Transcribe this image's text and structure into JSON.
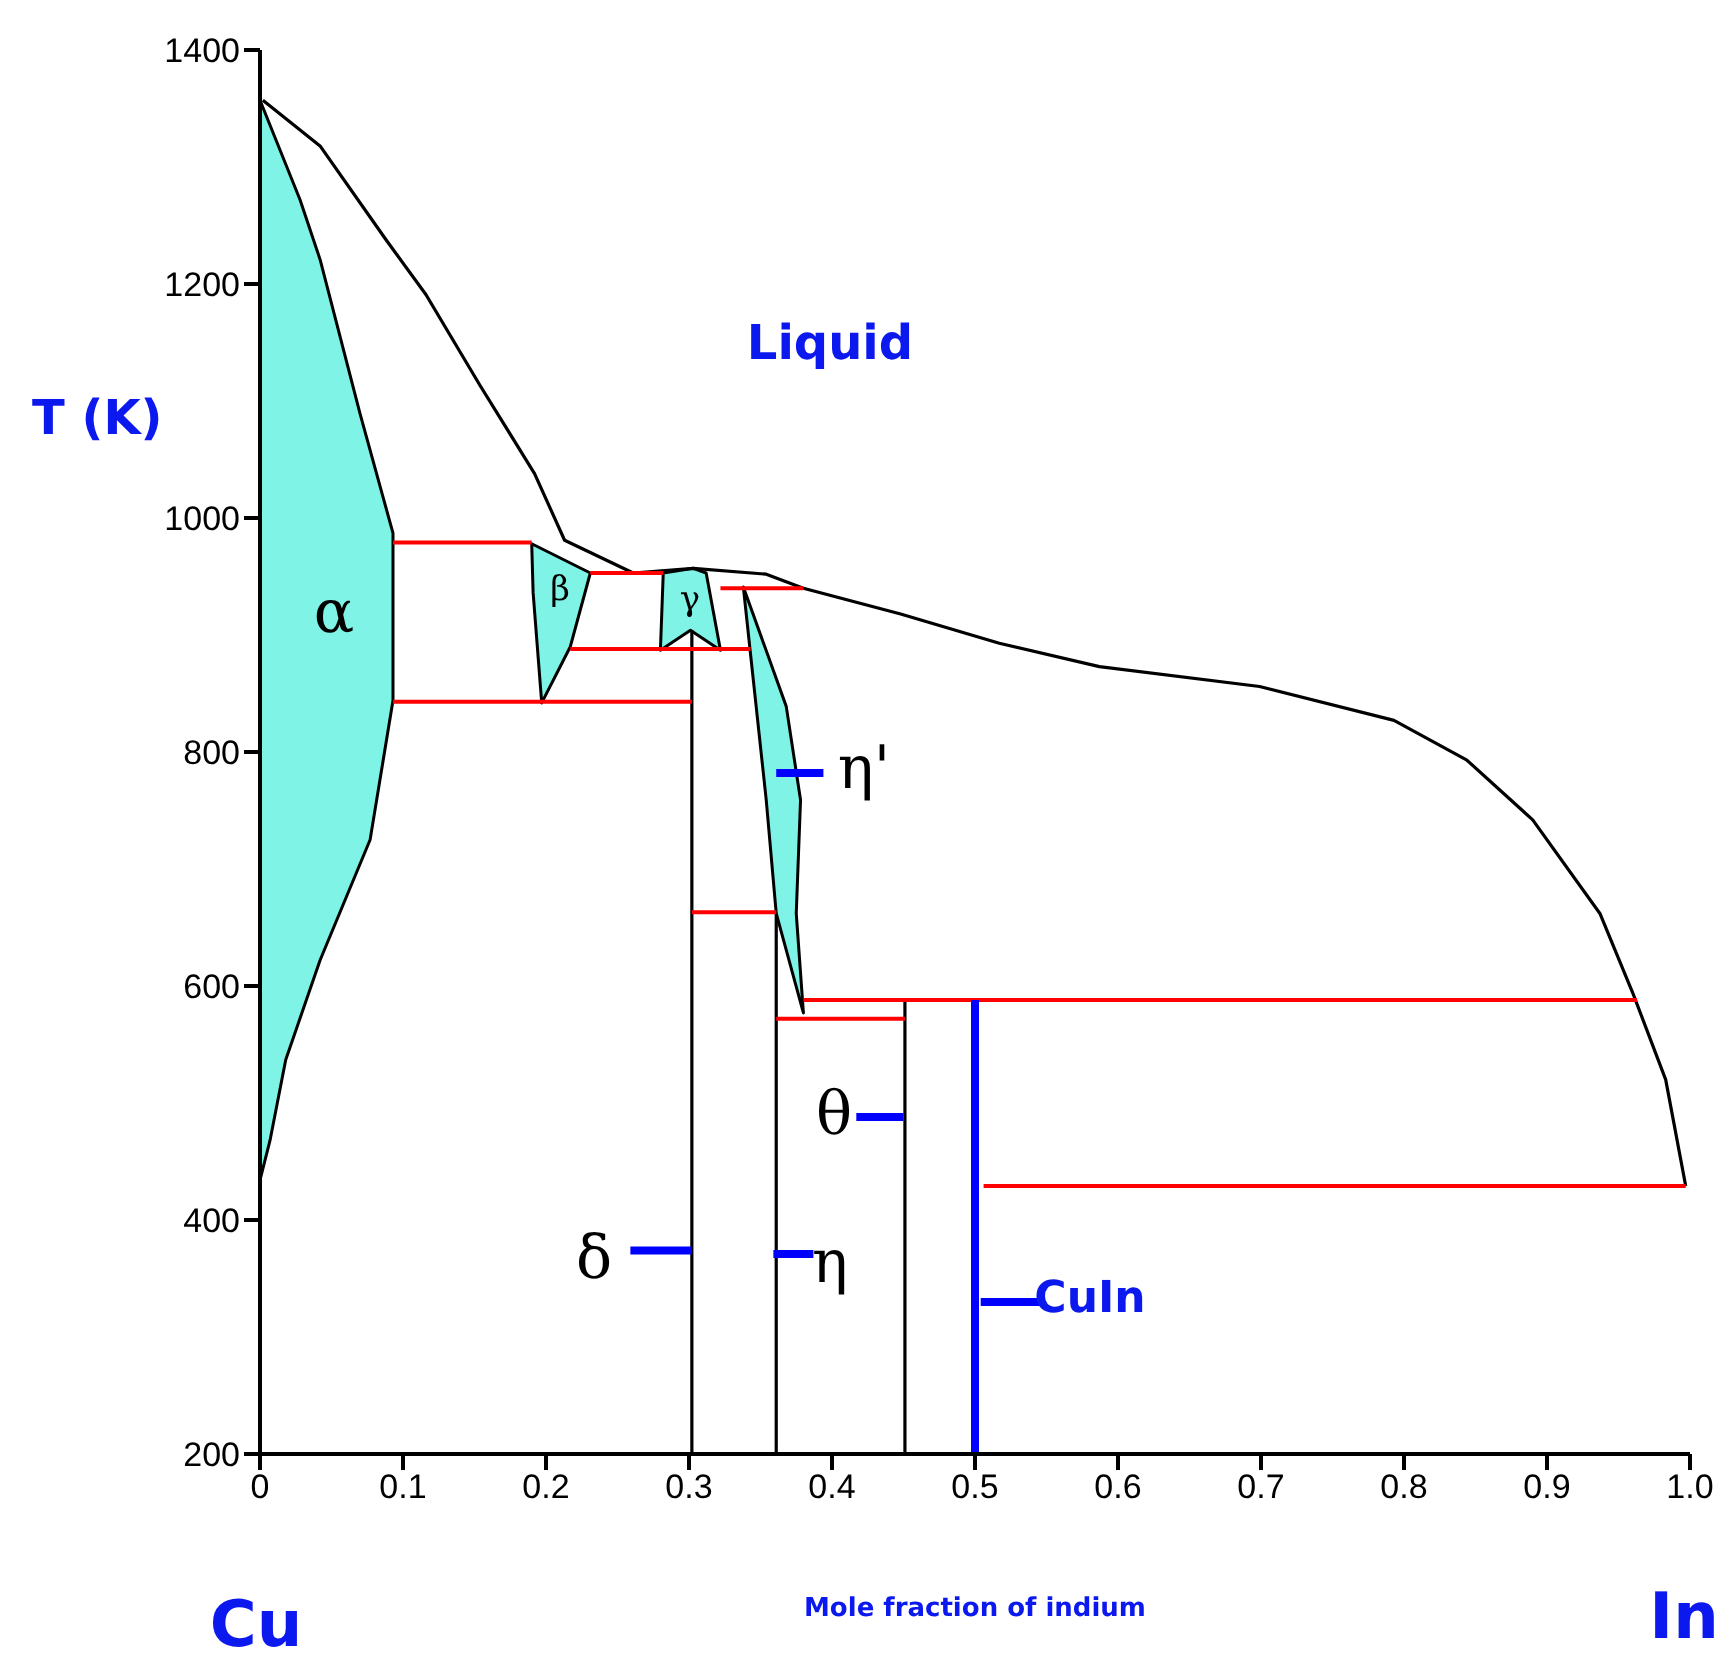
{
  "chart_data": {
    "type": "line",
    "xlabel": "Mole fraction of indium",
    "ylabel": "T (K)",
    "xlim": [
      0,
      1
    ],
    "ylim": [
      200,
      1400
    ],
    "xticks": [
      0,
      0.1,
      0.2,
      0.3,
      0.4,
      0.5,
      0.6,
      0.7,
      0.8,
      0.9,
      {
        "value": 1,
        "label": "1.0"
      }
    ],
    "yticks": [
      200,
      400,
      600,
      800,
      1000,
      1200,
      1400
    ],
    "marker": "none",
    "line_style": "solid",
    "series": [
      {
        "type": "area",
        "color": "#7ff3e6",
        "x": [
          0,
          0.028,
          0.042,
          0.07,
          0.093,
          0.093,
          0.077,
          0.042,
          0.018,
          0.007,
          0
        ],
        "values": [
          1357,
          1272,
          1221,
          1089,
          987,
          844,
          725,
          622,
          537,
          468,
          434
        ]
      },
      {
        "type": "area",
        "color": "#7ff3e6",
        "x": [
          0.19,
          0.231,
          0.217,
          0.197,
          0.191
        ],
        "values": [
          978,
          953,
          890,
          842,
          936
        ]
      },
      {
        "type": "area",
        "color": "#7ff3e6",
        "x": [
          0.282,
          0.303,
          0.312,
          0.322,
          0.301,
          0.28
        ],
        "values": [
          953,
          957,
          953,
          887,
          904,
          887
        ]
      },
      {
        "type": "area",
        "color": "#7ff3e6",
        "x": [
          0.338,
          0.368,
          0.378,
          0.375,
          0.38,
          0.361,
          0.354,
          0.343
        ],
        "values": [
          941,
          839,
          759,
          662,
          577,
          662,
          759,
          884
        ]
      },
      {
        "type": "line",
        "color": "#000000",
        "x": [
          0.002,
          0.042,
          0.088,
          0.116,
          0.154,
          0.192,
          0.213,
          0.261,
          0.303,
          0.354,
          0.38,
          0.448,
          0.517,
          0.587,
          0.699,
          0.793,
          0.844,
          0.89,
          0.937,
          0.96,
          0.983,
          0.997
        ],
        "values": [
          1357,
          1318,
          1238,
          1191,
          1113,
          1038,
          981,
          953,
          957,
          952,
          940,
          918,
          893,
          873,
          856,
          827,
          793,
          742,
          662,
          594,
          520,
          429
        ]
      },
      {
        "type": "line",
        "color": "#000000",
        "x": [
          0.302,
          0.302
        ],
        "values": [
          904,
          200
        ]
      },
      {
        "type": "line",
        "color": "#000000",
        "x": [
          0.361,
          0.361
        ],
        "values": [
          662,
          200
        ]
      },
      {
        "type": "line",
        "color": "#000000",
        "x": [
          0.451,
          0.451
        ],
        "values": [
          588,
          200
        ]
      },
      {
        "type": "line",
        "color": "#ff0000",
        "x": [
          0.093,
          0.19
        ],
        "values": [
          979,
          979
        ]
      },
      {
        "type": "line",
        "color": "#ff0000",
        "x": [
          0.231,
          0.282
        ],
        "values": [
          953,
          953
        ]
      },
      {
        "type": "line",
        "color": "#ff0000",
        "x": [
          0.322,
          0.38
        ],
        "values": [
          940,
          940
        ]
      },
      {
        "type": "line",
        "color": "#ff0000",
        "x": [
          0.217,
          0.343
        ],
        "values": [
          888,
          888
        ]
      },
      {
        "type": "line",
        "color": "#ff0000",
        "x": [
          0.093,
          0.302
        ],
        "values": [
          843,
          843
        ]
      },
      {
        "type": "line",
        "color": "#ff0000",
        "x": [
          0.302,
          0.361
        ],
        "values": [
          663,
          663
        ]
      },
      {
        "type": "line",
        "color": "#ff0000",
        "x": [
          0.38,
          0.963
        ],
        "values": [
          588,
          588
        ]
      },
      {
        "type": "line",
        "color": "#ff0000",
        "x": [
          0.361,
          0.451
        ],
        "values": [
          572,
          572
        ]
      },
      {
        "type": "line",
        "color": "#ff0000",
        "x": [
          0.506,
          0.997
        ],
        "values": [
          429,
          429
        ]
      },
      {
        "type": "line",
        "color": "#0000ff",
        "x": [
          0.5,
          0.5
        ],
        "values": [
          588,
          200
        ]
      },
      {
        "type": "line",
        "color": "#0000ff",
        "x": [
          0.361,
          0.394
        ],
        "values": [
          782,
          782
        ]
      },
      {
        "type": "line",
        "color": "#0000ff",
        "x": [
          0.259,
          0.302
        ],
        "values": [
          374,
          374
        ]
      },
      {
        "type": "line",
        "color": "#0000ff",
        "x": [
          0.359,
          0.387
        ],
        "values": [
          371,
          371
        ]
      },
      {
        "type": "line",
        "color": "#0000ff",
        "x": [
          0.417,
          0.45
        ],
        "values": [
          488,
          488
        ]
      },
      {
        "type": "line",
        "color": "#0000ff",
        "x": [
          0.504,
          0.545
        ],
        "values": [
          330,
          330
        ]
      }
    ],
    "annotations": [
      "Liquid",
      "CuIn",
      "α",
      "δ",
      "η",
      "θ",
      "η'",
      "β",
      "γ",
      "Cu",
      "In"
    ]
  }
}
